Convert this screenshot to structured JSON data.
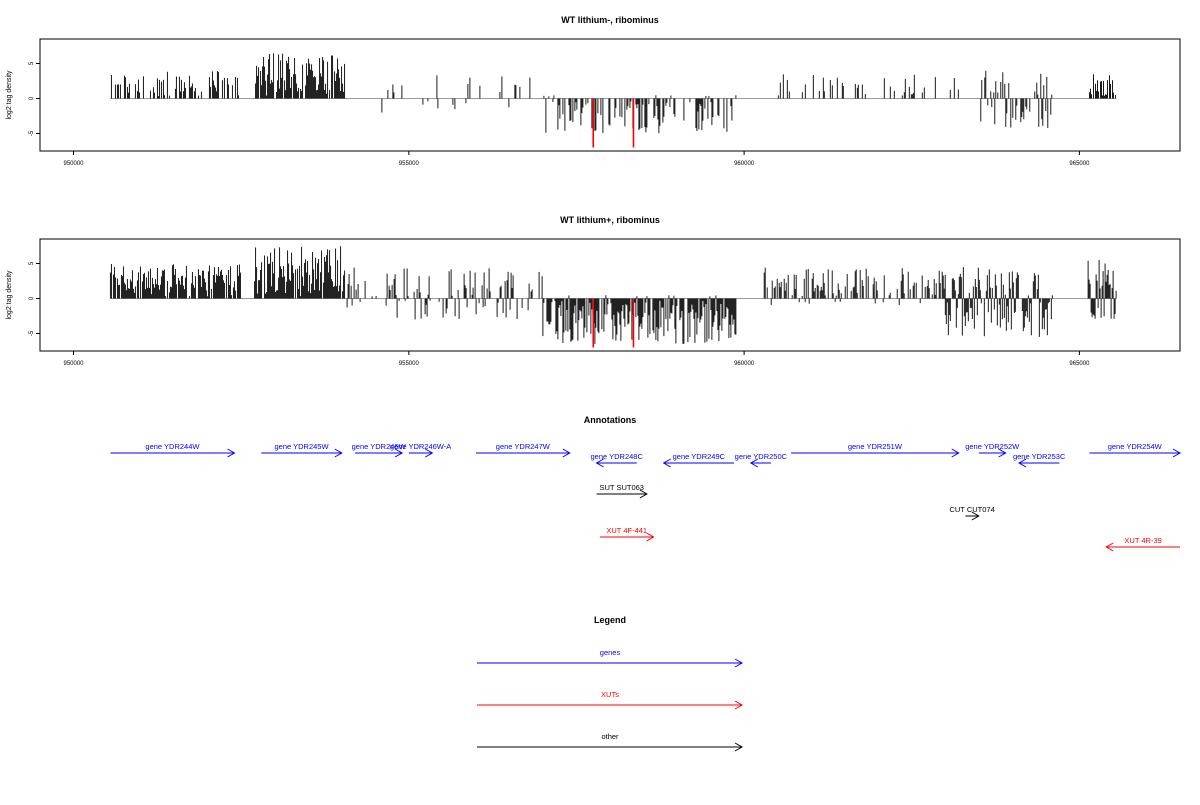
{
  "colors": {
    "bars": "#000000",
    "highlight": "#ff0000",
    "gene": "#0000ff",
    "xut": "#ff0000",
    "other": "#000000",
    "baseline": "#999999"
  },
  "chart_data": [
    {
      "type": "bar",
      "id": "track1",
      "title": "WT lithium-, ribominus",
      "ylabel": "log2 tag density",
      "xlim": [
        949500,
        966500
      ],
      "ylim": [
        -7.5,
        8.5
      ],
      "x_ticks": [
        950000,
        955000,
        960000,
        965000
      ],
      "y_ticks": [
        -5,
        0,
        5
      ],
      "data_range": [
        950550,
        965550
      ],
      "highlights": [
        {
          "x": 957750,
          "y": -7
        },
        {
          "x": 958350,
          "y": -7
        }
      ],
      "segments": [
        {
          "from": 950550,
          "to": 952500,
          "density": 0.4,
          "lo": 0,
          "hi": 4
        },
        {
          "from": 952700,
          "to": 954050,
          "density": 0.95,
          "lo": 0,
          "hi": 6.5
        },
        {
          "from": 954300,
          "to": 957000,
          "density": 0.12,
          "lo": -3,
          "hi": 3.5
        },
        {
          "from": 957000,
          "to": 959900,
          "density": 0.55,
          "lo": -5,
          "hi": 0.5
        },
        {
          "from": 960450,
          "to": 963200,
          "density": 0.22,
          "lo": 0,
          "hi": 3.5
        },
        {
          "from": 963500,
          "to": 964600,
          "density": 0.6,
          "lo": -4.5,
          "hi": 4
        },
        {
          "from": 965150,
          "to": 965550,
          "density": 0.8,
          "lo": 0,
          "hi": 3.5
        }
      ]
    },
    {
      "type": "bar",
      "id": "track2",
      "title": "WT lithium+, ribominus",
      "ylabel": "log2 tag density",
      "xlim": [
        949500,
        966500
      ],
      "ylim": [
        -7.5,
        8.5
      ],
      "x_ticks": [
        950000,
        955000,
        960000,
        965000
      ],
      "y_ticks": [
        -5,
        0,
        5
      ],
      "data_range": [
        950550,
        965550
      ],
      "highlights": [
        {
          "x": 957750,
          "y": -7
        },
        {
          "x": 958350,
          "y": -7
        }
      ],
      "segments": [
        {
          "from": 950550,
          "to": 952500,
          "density": 0.85,
          "lo": 0,
          "hi": 5
        },
        {
          "from": 952700,
          "to": 954050,
          "density": 1.0,
          "lo": 0,
          "hi": 7.5
        },
        {
          "from": 954050,
          "to": 957000,
          "density": 0.45,
          "lo": -3,
          "hi": 4.5
        },
        {
          "from": 957000,
          "to": 959900,
          "density": 0.95,
          "lo": -6.5,
          "hi": 0.5
        },
        {
          "from": 960300,
          "to": 963000,
          "density": 0.6,
          "lo": -1,
          "hi": 4.5
        },
        {
          "from": 963000,
          "to": 964600,
          "density": 0.95,
          "lo": -5.5,
          "hi": 4.5
        },
        {
          "from": 965100,
          "to": 965550,
          "density": 1.0,
          "lo": -3,
          "hi": 6.5
        }
      ]
    }
  ],
  "annotations": {
    "title": "Annotations",
    "features": [
      {
        "label": "gene YDR244W",
        "start": 950550,
        "end": 952400,
        "strand": "+",
        "type": "gene",
        "row": 1
      },
      {
        "label": "gene YDR245W",
        "start": 952800,
        "end": 954000,
        "strand": "+",
        "type": "gene",
        "row": 1
      },
      {
        "label": "gene YDR246W",
        "start": 954200,
        "end": 954900,
        "strand": "+",
        "type": "gene",
        "row": 1
      },
      {
        "label": "gene YDR246W-A",
        "start": 955000,
        "end": 955350,
        "strand": "+",
        "type": "gene",
        "row": 1
      },
      {
        "label": "gene YDR247W",
        "start": 956000,
        "end": 957400,
        "strand": "+",
        "type": "gene",
        "row": 1
      },
      {
        "label": "gene YDR248C",
        "start": 957800,
        "end": 958400,
        "strand": "-",
        "type": "gene",
        "row": 2
      },
      {
        "label": "gene YDR249C",
        "start": 958800,
        "end": 959850,
        "strand": "-",
        "type": "gene",
        "row": 2
      },
      {
        "label": "gene YDR250C",
        "start": 960100,
        "end": 960400,
        "strand": "-",
        "type": "gene",
        "row": 2
      },
      {
        "label": "gene YDR251W",
        "start": 960700,
        "end": 963200,
        "strand": "+",
        "type": "gene",
        "row": 1
      },
      {
        "label": "gene YDR252W",
        "start": 963500,
        "end": 963900,
        "strand": "+",
        "type": "gene",
        "row": 1
      },
      {
        "label": "gene YDR253C",
        "start": 964100,
        "end": 964700,
        "strand": "-",
        "type": "gene",
        "row": 2
      },
      {
        "label": "gene YDR254W",
        "start": 965150,
        "end": 966500,
        "strand": "+",
        "type": "gene",
        "row": 1
      },
      {
        "label": "SUT SUT063",
        "start": 957800,
        "end": 958550,
        "strand": "+",
        "type": "other",
        "row": 3
      },
      {
        "label": "CUT CUT074",
        "start": 963300,
        "end": 963500,
        "strand": "+",
        "type": "other",
        "row": 4
      },
      {
        "label": "XUT 4F-441",
        "start": 957850,
        "end": 958650,
        "strand": "+",
        "type": "xut",
        "row": 5
      },
      {
        "label": "XUT 4R-39",
        "start": 965400,
        "end": 966500,
        "strand": "-",
        "type": "xut",
        "row": 6
      }
    ]
  },
  "legend": {
    "title": "Legend",
    "items": [
      {
        "label": "genes",
        "type": "gene"
      },
      {
        "label": "XUTs",
        "type": "xut"
      },
      {
        "label": "other",
        "type": "other"
      }
    ]
  }
}
